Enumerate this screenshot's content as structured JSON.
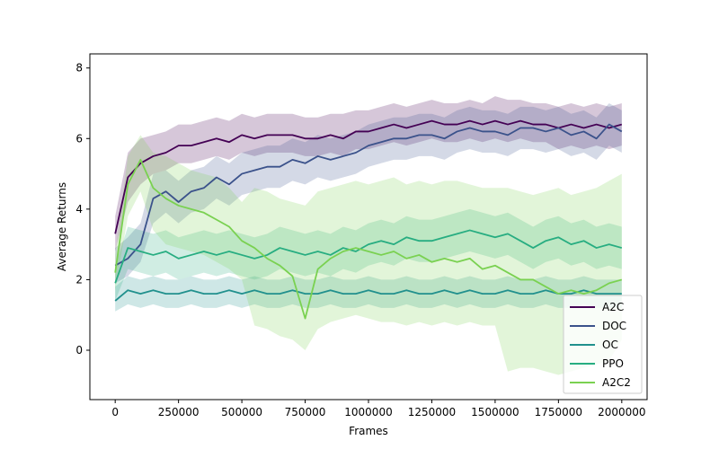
{
  "chart_data": {
    "type": "line",
    "title": "",
    "xlabel": "Frames",
    "ylabel": "Average Returns",
    "xlim": [
      -100000,
      2100000
    ],
    "ylim": [
      -1.4,
      8.4
    ],
    "xticks": [
      0,
      250000,
      500000,
      750000,
      1000000,
      1250000,
      1500000,
      1750000,
      2000000
    ],
    "xtick_labels": [
      "0",
      "250000",
      "500000",
      "750000",
      "1000000",
      "1250000",
      "1500000",
      "1750000",
      "2000000"
    ],
    "yticks": [
      0,
      2,
      4,
      6,
      8
    ],
    "ytick_labels": [
      "0",
      "2",
      "4",
      "6",
      "8"
    ],
    "grid": false,
    "legend_position": "bottom-right",
    "x": [
      0,
      50000,
      100000,
      150000,
      200000,
      250000,
      300000,
      350000,
      400000,
      450000,
      500000,
      550000,
      600000,
      650000,
      700000,
      750000,
      800000,
      850000,
      900000,
      950000,
      1000000,
      1050000,
      1100000,
      1150000,
      1200000,
      1250000,
      1300000,
      1350000,
      1400000,
      1450000,
      1500000,
      1550000,
      1600000,
      1650000,
      1700000,
      1750000,
      1800000,
      1850000,
      1900000,
      1950000,
      2000000
    ],
    "series": [
      {
        "name": "A2C",
        "color": "#440154",
        "values": [
          3.3,
          4.9,
          5.3,
          5.5,
          5.6,
          5.8,
          5.8,
          5.9,
          6.0,
          5.9,
          6.1,
          6.0,
          6.1,
          6.1,
          6.1,
          6.0,
          6.0,
          6.1,
          6.0,
          6.2,
          6.2,
          6.3,
          6.4,
          6.3,
          6.4,
          6.5,
          6.4,
          6.4,
          6.5,
          6.4,
          6.5,
          6.4,
          6.5,
          6.4,
          6.4,
          6.3,
          6.4,
          6.3,
          6.4,
          6.3,
          6.4
        ],
        "lower": [
          2.8,
          4.2,
          4.7,
          5.0,
          5.1,
          5.3,
          5.3,
          5.4,
          5.5,
          5.4,
          5.6,
          5.5,
          5.6,
          5.6,
          5.6,
          5.5,
          5.5,
          5.6,
          5.5,
          5.7,
          5.7,
          5.8,
          5.9,
          5.8,
          5.9,
          6.0,
          5.9,
          5.9,
          6.0,
          5.9,
          6.0,
          5.9,
          6.0,
          5.9,
          5.9,
          5.7,
          5.8,
          5.7,
          5.8,
          5.7,
          5.8
        ],
        "upper": [
          3.8,
          5.6,
          6.0,
          6.1,
          6.2,
          6.4,
          6.4,
          6.5,
          6.6,
          6.5,
          6.7,
          6.6,
          6.7,
          6.7,
          6.7,
          6.6,
          6.6,
          6.7,
          6.7,
          6.8,
          6.8,
          6.9,
          7.0,
          6.9,
          7.0,
          7.1,
          7.0,
          7.0,
          7.1,
          7.0,
          7.2,
          7.1,
          7.1,
          7.0,
          7.0,
          6.9,
          7.0,
          6.9,
          7.0,
          6.9,
          7.0
        ]
      },
      {
        "name": "DOC",
        "color": "#3b528b",
        "values": [
          2.4,
          2.6,
          3.0,
          4.3,
          4.5,
          4.2,
          4.5,
          4.6,
          4.9,
          4.7,
          5.0,
          5.1,
          5.2,
          5.2,
          5.4,
          5.3,
          5.5,
          5.4,
          5.5,
          5.6,
          5.8,
          5.9,
          6.0,
          6.0,
          6.1,
          6.1,
          6.0,
          6.2,
          6.3,
          6.2,
          6.2,
          6.1,
          6.3,
          6.3,
          6.2,
          6.3,
          6.1,
          6.2,
          6.0,
          6.4,
          6.2
        ],
        "lower": [
          1.9,
          2.1,
          2.5,
          3.6,
          3.9,
          3.6,
          3.9,
          4.0,
          4.3,
          4.1,
          4.4,
          4.5,
          4.6,
          4.6,
          4.8,
          4.7,
          4.9,
          4.8,
          4.9,
          5.0,
          5.2,
          5.3,
          5.4,
          5.4,
          5.5,
          5.5,
          5.4,
          5.6,
          5.7,
          5.6,
          5.6,
          5.5,
          5.7,
          5.7,
          5.6,
          5.7,
          5.5,
          5.6,
          5.4,
          5.8,
          5.6
        ],
        "upper": [
          2.9,
          3.2,
          3.6,
          5.0,
          5.1,
          4.8,
          5.1,
          5.2,
          5.5,
          5.3,
          5.6,
          5.7,
          5.8,
          5.8,
          6.0,
          5.9,
          6.1,
          6.0,
          6.1,
          6.2,
          6.4,
          6.5,
          6.6,
          6.6,
          6.7,
          6.7,
          6.6,
          6.8,
          6.9,
          6.8,
          6.8,
          6.7,
          6.9,
          6.9,
          6.8,
          6.9,
          6.7,
          6.8,
          6.6,
          7.0,
          6.8
        ]
      },
      {
        "name": "OC",
        "color": "#21908d",
        "values": [
          1.4,
          1.7,
          1.6,
          1.7,
          1.6,
          1.6,
          1.7,
          1.6,
          1.6,
          1.7,
          1.6,
          1.7,
          1.6,
          1.6,
          1.7,
          1.6,
          1.6,
          1.7,
          1.6,
          1.6,
          1.7,
          1.6,
          1.6,
          1.7,
          1.6,
          1.6,
          1.7,
          1.6,
          1.7,
          1.6,
          1.6,
          1.7,
          1.6,
          1.6,
          1.7,
          1.6,
          1.6,
          1.7,
          1.6,
          1.6,
          1.6
        ],
        "lower": [
          1.1,
          1.3,
          1.2,
          1.3,
          1.2,
          1.2,
          1.3,
          1.2,
          1.2,
          1.3,
          1.2,
          1.3,
          1.2,
          1.2,
          1.3,
          1.2,
          1.2,
          1.3,
          1.2,
          1.2,
          1.3,
          1.2,
          1.2,
          1.3,
          1.2,
          1.2,
          1.3,
          1.2,
          1.3,
          1.2,
          1.2,
          1.3,
          1.2,
          1.2,
          1.3,
          1.2,
          1.2,
          1.3,
          1.2,
          1.2,
          1.2
        ],
        "upper": [
          1.8,
          2.1,
          2.0,
          2.1,
          2.0,
          2.0,
          2.1,
          2.0,
          2.0,
          2.1,
          2.0,
          2.1,
          2.0,
          2.0,
          2.1,
          2.0,
          2.0,
          2.1,
          2.0,
          2.0,
          2.1,
          2.0,
          2.0,
          2.1,
          2.0,
          2.0,
          2.1,
          2.0,
          2.1,
          2.0,
          2.0,
          2.1,
          2.0,
          2.0,
          2.1,
          2.0,
          2.0,
          2.1,
          2.0,
          2.0,
          2.0
        ]
      },
      {
        "name": "PPO",
        "color": "#27ad81",
        "values": [
          1.9,
          2.9,
          2.8,
          2.7,
          2.8,
          2.6,
          2.7,
          2.8,
          2.7,
          2.8,
          2.7,
          2.6,
          2.7,
          2.9,
          2.8,
          2.7,
          2.8,
          2.7,
          2.9,
          2.8,
          3.0,
          3.1,
          3.0,
          3.2,
          3.1,
          3.1,
          3.2,
          3.3,
          3.4,
          3.3,
          3.2,
          3.3,
          3.1,
          2.9,
          3.1,
          3.2,
          3.0,
          3.1,
          2.9,
          3.0,
          2.9
        ],
        "lower": [
          1.4,
          2.3,
          2.2,
          2.1,
          2.2,
          2.0,
          2.1,
          2.2,
          2.1,
          2.2,
          2.1,
          2.0,
          2.1,
          2.3,
          2.2,
          2.1,
          2.2,
          2.1,
          2.3,
          2.2,
          2.4,
          2.5,
          2.4,
          2.6,
          2.5,
          2.5,
          2.6,
          2.7,
          2.8,
          2.7,
          2.6,
          2.7,
          2.5,
          2.3,
          2.5,
          2.6,
          2.4,
          2.5,
          2.3,
          2.4,
          2.3
        ],
        "upper": [
          2.4,
          3.5,
          3.4,
          3.3,
          3.4,
          3.2,
          3.3,
          3.4,
          3.3,
          3.4,
          3.3,
          3.2,
          3.3,
          3.5,
          3.4,
          3.3,
          3.4,
          3.3,
          3.5,
          3.4,
          3.6,
          3.7,
          3.6,
          3.8,
          3.7,
          3.7,
          3.8,
          3.9,
          4.0,
          3.9,
          3.8,
          3.9,
          3.7,
          3.5,
          3.7,
          3.8,
          3.6,
          3.7,
          3.5,
          3.6,
          3.5
        ]
      },
      {
        "name": "A2C2",
        "color": "#7ad151",
        "values": [
          2.2,
          4.7,
          5.4,
          4.6,
          4.3,
          4.1,
          4.0,
          3.9,
          3.7,
          3.5,
          3.1,
          2.9,
          2.6,
          2.4,
          2.1,
          0.9,
          2.3,
          2.6,
          2.8,
          2.9,
          2.8,
          2.7,
          2.8,
          2.6,
          2.7,
          2.5,
          2.6,
          2.5,
          2.6,
          2.3,
          2.4,
          2.2,
          2.0,
          2.0,
          1.8,
          1.6,
          1.7,
          1.6,
          1.7,
          1.9,
          2.0
        ],
        "lower": [
          1.7,
          3.8,
          4.5,
          3.4,
          3.0,
          2.9,
          2.8,
          2.7,
          2.5,
          2.3,
          2.0,
          0.7,
          0.6,
          0.4,
          0.3,
          0.0,
          0.6,
          0.8,
          0.9,
          1.0,
          0.9,
          0.8,
          0.8,
          0.7,
          0.8,
          0.7,
          0.8,
          0.7,
          0.8,
          0.7,
          0.7,
          -0.6,
          -0.5,
          -0.5,
          -0.6,
          -0.7,
          -0.6,
          -0.5,
          -0.4,
          -0.3,
          0.3
        ],
        "upper": [
          2.7,
          5.5,
          6.1,
          5.6,
          5.5,
          5.3,
          5.1,
          5.0,
          4.9,
          4.6,
          4.2,
          4.6,
          4.5,
          4.3,
          4.2,
          4.1,
          4.5,
          4.6,
          4.7,
          4.8,
          4.7,
          4.8,
          4.9,
          4.7,
          4.8,
          4.7,
          4.8,
          4.8,
          4.7,
          4.6,
          4.6,
          4.6,
          4.5,
          4.4,
          4.5,
          4.6,
          4.4,
          4.5,
          4.6,
          4.8,
          5.0
        ]
      }
    ]
  }
}
